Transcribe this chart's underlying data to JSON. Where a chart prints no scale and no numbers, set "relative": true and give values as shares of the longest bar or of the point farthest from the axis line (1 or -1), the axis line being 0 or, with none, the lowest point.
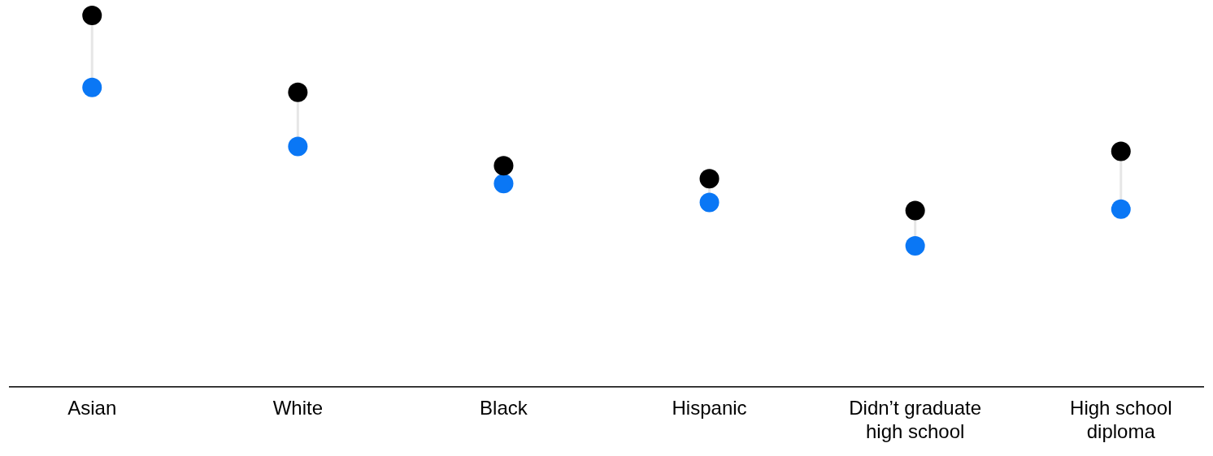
{
  "chart_data": {
    "type": "scatter",
    "relative": true,
    "categories": [
      "Asian",
      "White",
      "Black",
      "Hispanic",
      "Didn’t graduate high school",
      "High school diploma"
    ],
    "series": [
      {
        "color": "#000000",
        "values": [
          1,
          0.793,
          0.595,
          0.56,
          0.474,
          0.634
        ]
      },
      {
        "color": "#0a77f5",
        "values": [
          0.806,
          0.647,
          0.547,
          0.496,
          0.379,
          0.478
        ]
      }
    ],
    "marker": "circle",
    "grid": false,
    "legend": false
  }
}
